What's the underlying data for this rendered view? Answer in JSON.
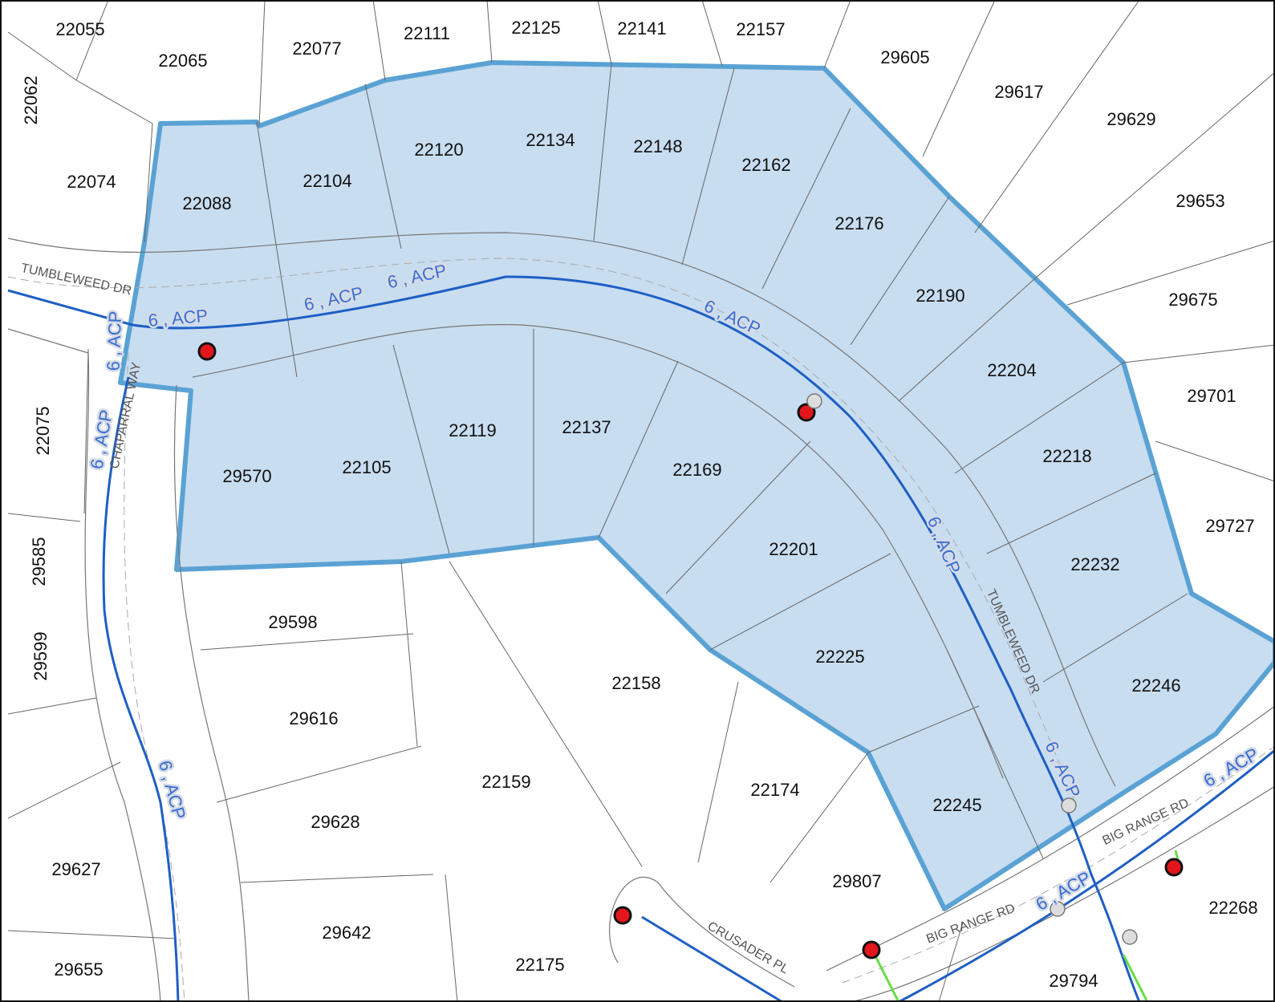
{
  "parcels": [
    "22055",
    "22065",
    "22077",
    "22111",
    "22125",
    "22141",
    "22157",
    "29605",
    "29617",
    "29629",
    "22062",
    "22074",
    "22088",
    "22104",
    "22120",
    "22134",
    "22148",
    "22162",
    "22176",
    "29653",
    "22190",
    "29675",
    "22204",
    "29701",
    "22075",
    "22119",
    "22137",
    "29570",
    "22105",
    "22169",
    "22218",
    "29727",
    "29585",
    "22201",
    "22232",
    "29598",
    "29599",
    "22225",
    "22158",
    "22246",
    "29616",
    "22159",
    "22174",
    "22245",
    "29628",
    "29627",
    "29807",
    "22268",
    "29642",
    "22175",
    "29655",
    "29794"
  ],
  "streets": [
    "TUMBLEWEED DR",
    "CHAPARRAL WAY",
    "TUMBLEWEED DR",
    "BIG RANGE RD",
    "BIG RANGE RD",
    "CRUSADER PL"
  ],
  "pipe_labels": [
    "6 , ACP",
    "6 , ACP",
    "6 , ACP",
    "6 , ACP",
    "6 , ACP",
    "6 , ACP",
    "6 , ACP",
    "6 , ACP",
    "6 , ACP",
    "6 , ACP",
    "6 , ACP"
  ]
}
